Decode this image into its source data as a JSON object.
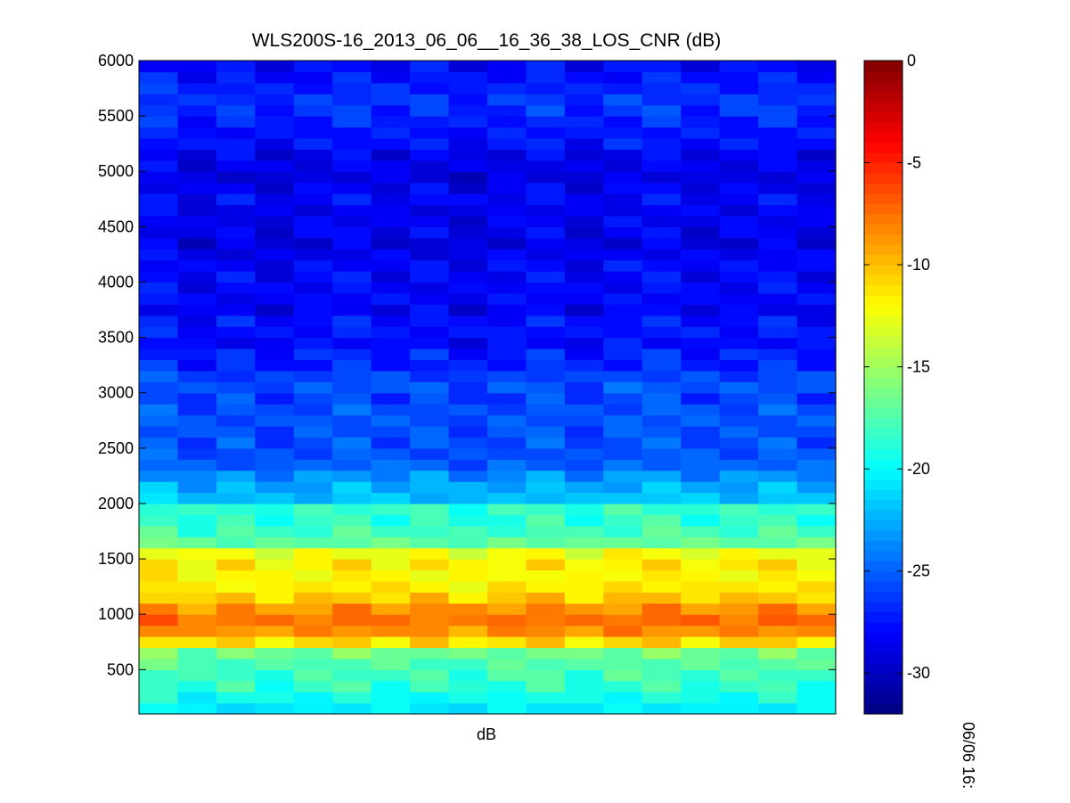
{
  "chart_data": {
    "type": "heatmap",
    "title": "WLS200S-16_2013_06_06__16_36_38_LOS_CNR (dB)",
    "xlabel": "dB",
    "ylabel": "",
    "side_label": "06/06 16:",
    "ylim": [
      100,
      6000
    ],
    "y_ticks": [
      500,
      1000,
      1500,
      2000,
      2500,
      3000,
      3500,
      4000,
      4500,
      5000,
      5500,
      6000
    ],
    "colorbar": {
      "clim": [
        -32,
        0
      ],
      "ticks": [
        0,
        -5,
        -10,
        -15,
        -20,
        -25,
        -30
      ],
      "colormap": "jet",
      "levels": 64
    },
    "grid": false,
    "columns": 18,
    "profile": {
      "range": [
        150,
        250,
        350,
        450,
        550,
        650,
        750,
        850,
        950,
        1050,
        1150,
        1250,
        1350,
        1450,
        1550,
        1650,
        1750,
        1850,
        1950,
        2050,
        2150,
        2250,
        2350,
        2450,
        2550,
        2650,
        2750,
        2850,
        2950,
        3050,
        3150,
        3250,
        3350,
        3450,
        3550,
        3650,
        3750,
        3850,
        3950,
        4050,
        4150,
        4250,
        4350,
        4450,
        4550,
        4650,
        4750,
        4850,
        4950,
        5050,
        5150,
        5250,
        5350,
        5450,
        5550,
        5650,
        5750,
        5850,
        5950
      ],
      "cnr": [
        -20.5,
        -19.5,
        -18.5,
        -18,
        -17.5,
        -16.5,
        -11,
        -8.5,
        -7.5,
        -8.5,
        -10.5,
        -11.5,
        -12,
        -11.5,
        -12.5,
        -17,
        -18,
        -18.5,
        -18.5,
        -22,
        -22.5,
        -23.5,
        -25,
        -25.5,
        -25.5,
        -25.5,
        -25.5,
        -25.5,
        -26,
        -25.5,
        -26,
        -27,
        -27,
        -28,
        -27.5,
        -27.5,
        -28.5,
        -28,
        -28,
        -28,
        -28,
        -28.5,
        -29,
        -28.5,
        -28.5,
        -28.5,
        -28,
        -28.5,
        -29,
        -28.5,
        -28.5,
        -27.5,
        -27.5,
        -27,
        -26.5,
        -26.5,
        -27,
        -27.5,
        -28
      ]
    },
    "column_offsets": [
      0.3,
      -0.2,
      0.1,
      -0.3,
      0.0,
      0.2,
      -0.1,
      0.1,
      -0.3,
      0.0,
      0.2,
      -0.2,
      0.1,
      0.3,
      -0.1,
      0.0,
      0.2,
      -0.1
    ]
  }
}
